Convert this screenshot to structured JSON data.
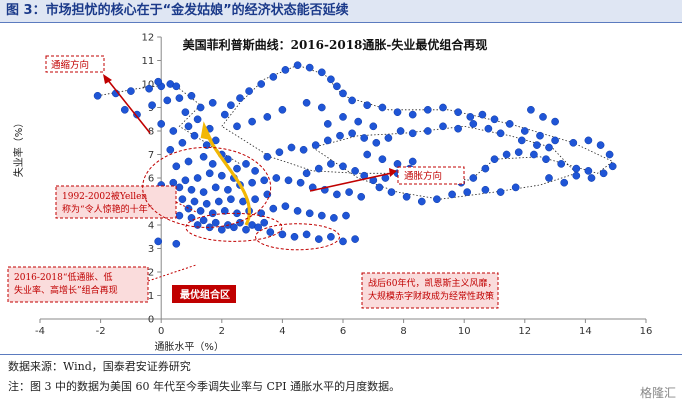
{
  "figure": {
    "label": "图 3：市场担忧的核心在于“金发姑娘”的经济状态能否延续",
    "source": "数据来源：Wind，国泰君安证券研究",
    "note": "注：图 3 中的数据为美国 60 年代至今季调失业率与 CPI 通胀水平的月度数据。",
    "watermark": "格隆汇"
  },
  "chart_data": {
    "type": "scatter",
    "title": "美国菲利普斯曲线：2016-2018通胀-失业最优组合再现",
    "xlabel": "通胀水平（%）",
    "ylabel": "失业率（%）",
    "xlim": [
      -4,
      16
    ],
    "ylim": [
      0,
      12
    ],
    "xticks": [
      "-4",
      "-2",
      "0",
      "2",
      "4",
      "6",
      "8",
      "10",
      "12",
      "14",
      "16"
    ],
    "yticks": [
      "0",
      "1",
      "2",
      "3",
      "4",
      "5",
      "6",
      "7",
      "8",
      "9",
      "10",
      "11",
      "12"
    ],
    "grid": false,
    "point_color": "#1f55d6",
    "points": [
      [
        -2.1,
        9.5
      ],
      [
        -1.5,
        9.6
      ],
      [
        -1.0,
        9.7
      ],
      [
        -0.4,
        9.8
      ],
      [
        0.0,
        9.9
      ],
      [
        0.3,
        10.0
      ],
      [
        -0.1,
        10.1
      ],
      [
        0.5,
        9.9
      ],
      [
        0.2,
        9.3
      ],
      [
        -0.3,
        9.1
      ],
      [
        0.6,
        9.4
      ],
      [
        1.0,
        9.5
      ],
      [
        1.3,
        9.0
      ],
      [
        0.8,
        8.8
      ],
      [
        -1.2,
        8.9
      ],
      [
        -0.8,
        8.7
      ],
      [
        0.0,
        8.3
      ],
      [
        0.4,
        8.0
      ],
      [
        0.9,
        8.2
      ],
      [
        1.2,
        8.5
      ],
      [
        1.6,
        8.1
      ],
      [
        1.1,
        7.8
      ],
      [
        0.7,
        7.5
      ],
      [
        0.3,
        7.2
      ],
      [
        1.5,
        7.4
      ],
      [
        1.8,
        7.6
      ],
      [
        2.0,
        7.0
      ],
      [
        1.4,
        6.9
      ],
      [
        0.9,
        6.7
      ],
      [
        0.5,
        6.5
      ],
      [
        1.7,
        6.6
      ],
      [
        2.2,
        6.8
      ],
      [
        2.5,
        6.4
      ],
      [
        2.8,
        6.6
      ],
      [
        3.1,
        6.3
      ],
      [
        2.4,
        6.0
      ],
      [
        2.0,
        6.1
      ],
      [
        1.6,
        6.2
      ],
      [
        1.2,
        6.0
      ],
      [
        0.8,
        5.9
      ],
      [
        0.4,
        5.8
      ],
      [
        0.0,
        5.7
      ],
      [
        -0.3,
        5.5
      ],
      [
        0.2,
        5.4
      ],
      [
        0.6,
        5.6
      ],
      [
        1.0,
        5.5
      ],
      [
        1.4,
        5.4
      ],
      [
        1.8,
        5.6
      ],
      [
        2.2,
        5.5
      ],
      [
        2.6,
        5.7
      ],
      [
        3.0,
        5.8
      ],
      [
        3.4,
        5.9
      ],
      [
        3.8,
        6.0
      ],
      [
        4.2,
        5.9
      ],
      [
        4.6,
        5.8
      ],
      [
        5.0,
        5.6
      ],
      [
        5.4,
        5.5
      ],
      [
        5.8,
        5.3
      ],
      [
        6.2,
        5.4
      ],
      [
        6.6,
        5.2
      ],
      [
        3.5,
        5.3
      ],
      [
        3.1,
        5.1
      ],
      [
        2.7,
        5.0
      ],
      [
        2.3,
        5.1
      ],
      [
        1.9,
        5.0
      ],
      [
        1.5,
        4.9
      ],
      [
        1.1,
        5.0
      ],
      [
        0.7,
        5.1
      ],
      [
        0.3,
        5.0
      ],
      [
        0.9,
        4.7
      ],
      [
        1.3,
        4.6
      ],
      [
        1.7,
        4.5
      ],
      [
        2.1,
        4.6
      ],
      [
        2.5,
        4.5
      ],
      [
        2.9,
        4.6
      ],
      [
        3.3,
        4.5
      ],
      [
        3.7,
        4.7
      ],
      [
        4.1,
        4.8
      ],
      [
        4.5,
        4.6
      ],
      [
        4.9,
        4.5
      ],
      [
        5.3,
        4.4
      ],
      [
        5.7,
        4.3
      ],
      [
        6.1,
        4.4
      ],
      [
        1.0,
        4.3
      ],
      [
        1.4,
        4.2
      ],
      [
        1.8,
        4.1
      ],
      [
        2.2,
        4.0
      ],
      [
        2.6,
        4.1
      ],
      [
        3.0,
        4.0
      ],
      [
        3.4,
        4.1
      ],
      [
        1.6,
        3.9
      ],
      [
        2.0,
        3.8
      ],
      [
        2.4,
        3.9
      ],
      [
        2.8,
        3.8
      ],
      [
        3.2,
        3.9
      ],
      [
        1.2,
        4.0
      ],
      [
        0.6,
        4.4
      ],
      [
        0.2,
        4.6
      ],
      [
        0.5,
        3.2
      ],
      [
        -0.1,
        3.3
      ],
      [
        3.6,
        3.7
      ],
      [
        4.0,
        3.6
      ],
      [
        4.4,
        3.5
      ],
      [
        4.8,
        3.6
      ],
      [
        5.2,
        3.4
      ],
      [
        5.6,
        3.5
      ],
      [
        6.0,
        3.3
      ],
      [
        6.4,
        3.4
      ],
      [
        2.3,
        9.1
      ],
      [
        2.6,
        9.4
      ],
      [
        2.9,
        9.7
      ],
      [
        3.3,
        10.0
      ],
      [
        3.7,
        10.3
      ],
      [
        4.1,
        10.6
      ],
      [
        4.5,
        10.8
      ],
      [
        4.9,
        10.7
      ],
      [
        5.3,
        10.5
      ],
      [
        5.6,
        10.2
      ],
      [
        5.8,
        9.9
      ],
      [
        6.0,
        9.6
      ],
      [
        6.3,
        9.3
      ],
      [
        6.8,
        9.1
      ],
      [
        7.3,
        9.0
      ],
      [
        7.8,
        8.8
      ],
      [
        8.3,
        8.7
      ],
      [
        8.8,
        8.9
      ],
      [
        9.3,
        9.0
      ],
      [
        9.8,
        8.8
      ],
      [
        10.2,
        8.6
      ],
      [
        10.6,
        8.7
      ],
      [
        11.0,
        8.5
      ],
      [
        11.5,
        8.3
      ],
      [
        12.0,
        8.0
      ],
      [
        12.5,
        7.8
      ],
      [
        13.0,
        7.6
      ],
      [
        13.6,
        7.5
      ],
      [
        14.1,
        7.6
      ],
      [
        14.5,
        7.4
      ],
      [
        14.8,
        7.0
      ],
      [
        14.9,
        6.5
      ],
      [
        14.6,
        6.2
      ],
      [
        14.1,
        6.3
      ],
      [
        13.7,
        6.4
      ],
      [
        13.2,
        6.6
      ],
      [
        12.7,
        6.8
      ],
      [
        12.3,
        7.0
      ],
      [
        11.8,
        7.1
      ],
      [
        11.4,
        7.0
      ],
      [
        11.0,
        6.8
      ],
      [
        10.7,
        6.4
      ],
      [
        10.3,
        6.0
      ],
      [
        9.9,
        5.8
      ],
      [
        9.4,
        5.9
      ],
      [
        9.0,
        6.1
      ],
      [
        8.6,
        6.3
      ],
      [
        8.2,
        6.4
      ],
      [
        7.8,
        6.2
      ],
      [
        7.4,
        6.0
      ],
      [
        7.0,
        5.9
      ],
      [
        6.7,
        6.1
      ],
      [
        6.4,
        6.3
      ],
      [
        6.0,
        6.5
      ],
      [
        5.6,
        6.6
      ],
      [
        5.2,
        6.4
      ],
      [
        4.8,
        6.2
      ],
      [
        12.2,
        8.9
      ],
      [
        12.6,
        8.6
      ],
      [
        13.0,
        8.4
      ],
      [
        12.8,
        7.3
      ],
      [
        12.4,
        7.4
      ],
      [
        11.9,
        7.6
      ],
      [
        11.2,
        7.9
      ],
      [
        10.8,
        8.1
      ],
      [
        10.3,
        8.3
      ],
      [
        9.8,
        8.1
      ],
      [
        9.3,
        8.2
      ],
      [
        8.8,
        8.0
      ],
      [
        8.3,
        7.9
      ],
      [
        7.9,
        8.0
      ],
      [
        7.5,
        7.7
      ],
      [
        7.1,
        7.5
      ],
      [
        6.7,
        7.7
      ],
      [
        6.3,
        7.9
      ],
      [
        5.9,
        7.8
      ],
      [
        5.5,
        7.6
      ],
      [
        5.1,
        7.4
      ],
      [
        4.7,
        7.2
      ],
      [
        4.3,
        7.3
      ],
      [
        3.9,
        7.1
      ],
      [
        3.5,
        6.9
      ],
      [
        11.7,
        5.6
      ],
      [
        11.2,
        5.4
      ],
      [
        10.7,
        5.5
      ],
      [
        10.1,
        5.4
      ],
      [
        9.6,
        5.3
      ],
      [
        9.1,
        5.1
      ],
      [
        8.6,
        5.0
      ],
      [
        8.1,
        5.2
      ],
      [
        7.6,
        5.4
      ],
      [
        7.2,
        5.6
      ],
      [
        12.8,
        6.0
      ],
      [
        13.3,
        5.8
      ],
      [
        13.7,
        6.1
      ],
      [
        14.2,
        6.0
      ],
      [
        5.5,
        8.3
      ],
      [
        6.0,
        8.6
      ],
      [
        6.5,
        8.4
      ],
      [
        7.0,
        8.2
      ],
      [
        4.8,
        9.2
      ],
      [
        5.3,
        9.0
      ],
      [
        3.5,
        8.6
      ],
      [
        4.0,
        8.9
      ],
      [
        3.0,
        8.4
      ],
      [
        2.5,
        8.2
      ],
      [
        2.1,
        8.7
      ],
      [
        1.7,
        9.2
      ],
      [
        6.8,
        7.0
      ],
      [
        7.3,
        6.8
      ],
      [
        7.8,
        6.6
      ],
      [
        8.3,
        6.7
      ]
    ],
    "annotations": {
      "deflation": "通缩方向",
      "inflation": "通胀方向",
      "period_1992": "1992-2002被Yellen称为“令人惊艳的十年”",
      "period_2016": "2016-2018“低通胀、低失业率、高增长”组合再现",
      "optimal": "最优组合区",
      "postwar": "战后60年代，凯恩斯主义风靡，大规模赤字财政成为经常性政策"
    }
  }
}
